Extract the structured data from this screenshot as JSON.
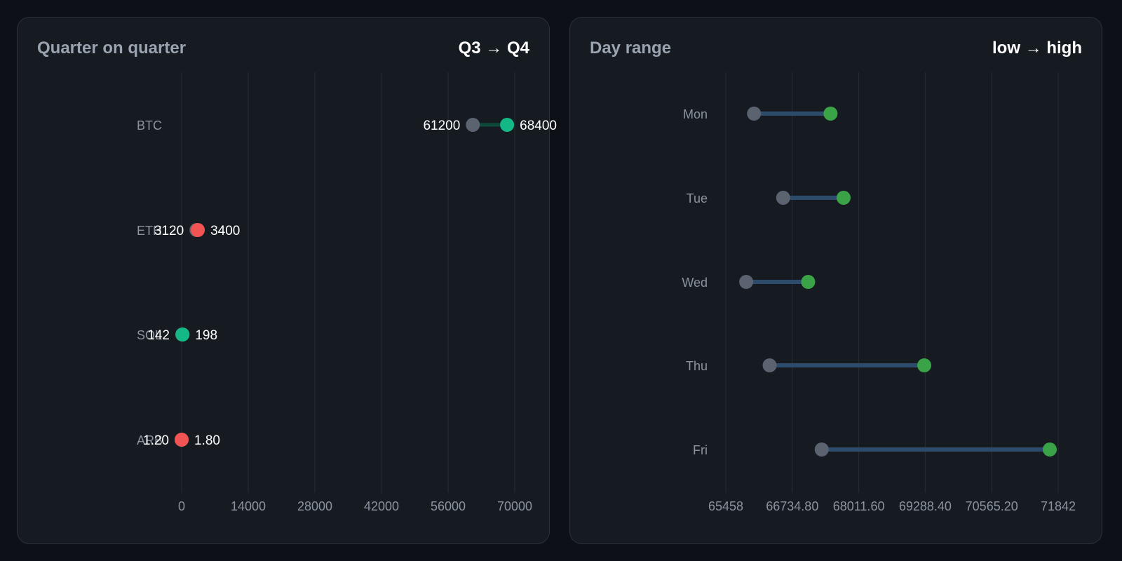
{
  "colors": {
    "page_bg": "#0d1117",
    "panel_bg": "#161b22",
    "grid": "#262c35",
    "muted_text": "#8b949e",
    "value_text": "#ffffff",
    "start_dot": "#5b6270",
    "up_dot": "#14b886",
    "down_dot": "#f25353",
    "up_connector": "#0e4a3a",
    "range_connector": "#2d4b6b",
    "range_high_dot": "#3aa347"
  },
  "left_panel": {
    "title": "Quarter on quarter",
    "badge": "Q3 → Q4"
  },
  "right_panel": {
    "title": "Day range",
    "badge": "low → high"
  },
  "chart_data": [
    {
      "type": "dumbbell",
      "title": "Quarter on quarter",
      "legend_note": "Q3 → Q4",
      "categories": [
        "BTC",
        "ETH",
        "SOL",
        "ARB"
      ],
      "start_values": [
        61200,
        3120,
        142,
        1.2
      ],
      "end_values": [
        68400,
        3400,
        198,
        1.8
      ],
      "start_labels": [
        "61200",
        "3120",
        "142",
        "1.20"
      ],
      "end_labels": [
        "68400",
        "3400",
        "198",
        "1.80"
      ],
      "x_ticks": [
        0,
        14000,
        28000,
        42000,
        56000,
        70000
      ],
      "x_tick_labels": [
        "0",
        "14000",
        "28000",
        "42000",
        "56000",
        "70000"
      ],
      "xlim": [
        0,
        70000
      ],
      "grid": true
    },
    {
      "type": "dumbbell",
      "title": "Day range",
      "legend_note": "low → high",
      "categories": [
        "Mon",
        "Tue",
        "Wed",
        "Thu",
        "Fri"
      ],
      "low_values": [
        66000,
        66560,
        65850,
        66300,
        67300
      ],
      "high_values": [
        67470,
        67720,
        67040,
        69270,
        71680
      ],
      "x_ticks": [
        65458,
        66734.8,
        68011.6,
        69288.4,
        70565.2,
        71842
      ],
      "x_tick_labels": [
        "65458",
        "66734.80",
        "68011.60",
        "69288.40",
        "70565.20",
        "71842"
      ],
      "xlim": [
        65458,
        71842
      ],
      "grid": true
    }
  ]
}
